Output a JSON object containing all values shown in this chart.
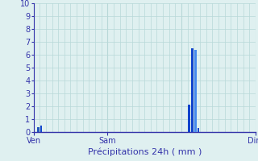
{
  "title": "",
  "xlabel": "Précipitations 24h ( mm )",
  "ylabel": "",
  "background_color": "#dff0f0",
  "grid_color": "#b8d8d8",
  "ylim": [
    0,
    10
  ],
  "yticks": [
    0,
    1,
    2,
    3,
    4,
    5,
    6,
    7,
    8,
    9,
    10
  ],
  "xlim": [
    0,
    72
  ],
  "day_labels": [
    {
      "label": "Ven",
      "x": 0
    },
    {
      "label": "Sam",
      "x": 24
    },
    {
      "label": "Dim",
      "x": 72
    }
  ],
  "vlines": [
    0,
    24,
    48,
    72
  ],
  "bars": [
    {
      "x": 1.5,
      "height": 0.35,
      "color": "#2255bb"
    },
    {
      "x": 2.5,
      "height": 0.5,
      "color": "#1144cc"
    },
    {
      "x": 50.5,
      "height": 2.1,
      "color": "#1144cc"
    },
    {
      "x": 51.5,
      "height": 6.5,
      "color": "#1144cc"
    },
    {
      "x": 52.5,
      "height": 6.4,
      "color": "#4488ee"
    },
    {
      "x": 53.5,
      "height": 0.3,
      "color": "#1144cc"
    }
  ],
  "bar_width": 0.7,
  "axis_color": "#3333aa",
  "tick_label_color": "#3333aa",
  "xlabel_color": "#3333aa",
  "label_fontsize": 8,
  "tick_fontsize": 7,
  "ylabel_tick_fontsize": 7
}
